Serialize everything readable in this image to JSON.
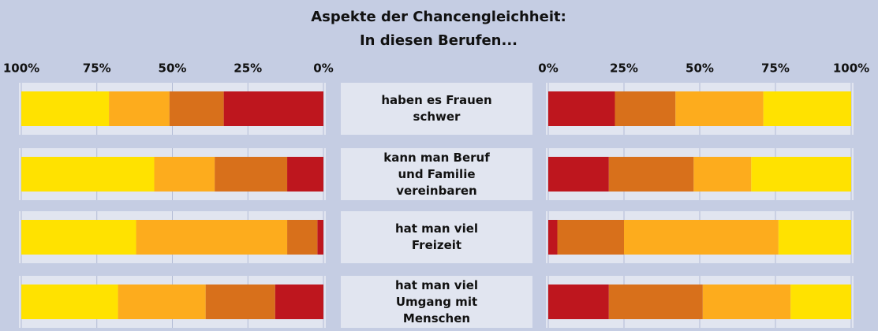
{
  "title": "Aspekte der Chancengleichheit:",
  "subtitle": "In diesen Berufen...",
  "categories": [
    "haben es Frauen schwer",
    "kann man Beruf und Familie vereinbaren",
    "hat man viel Freizeit",
    "hat man viel Umgang mit Menschen"
  ],
  "chart_data": [
    {
      "type": "bar",
      "orientation": "horizontal",
      "stacked": true,
      "xlim": [
        100,
        0
      ],
      "xticks": [
        {
          "value": 100,
          "label": "100%"
        },
        {
          "value": 75,
          "label": "75%"
        },
        {
          "value": 50,
          "label": "50%"
        },
        {
          "value": 25,
          "label": "25%"
        },
        {
          "value": 0,
          "label": "0%"
        }
      ],
      "grid": true,
      "series": [
        {
          "color": "#be161e",
          "values": [
            33,
            12,
            2,
            16
          ]
        },
        {
          "color": "#d8701b",
          "values": [
            18,
            24,
            10,
            23
          ]
        },
        {
          "color": "#fdac1d",
          "values": [
            20,
            20,
            50,
            29
          ]
        },
        {
          "color": "#ffe200",
          "values": [
            29,
            44,
            38,
            32
          ]
        }
      ]
    },
    {
      "type": "bar",
      "orientation": "horizontal",
      "stacked": true,
      "xlim": [
        0,
        100
      ],
      "xticks": [
        {
          "value": 0,
          "label": "0%"
        },
        {
          "value": 25,
          "label": "25%"
        },
        {
          "value": 50,
          "label": "50%"
        },
        {
          "value": 75,
          "label": "75%"
        },
        {
          "value": 100,
          "label": "100%"
        }
      ],
      "grid": true,
      "series": [
        {
          "color": "#be161e",
          "values": [
            22,
            20,
            3,
            20
          ]
        },
        {
          "color": "#d8701b",
          "values": [
            20,
            28,
            22,
            31
          ]
        },
        {
          "color": "#fdac1d",
          "values": [
            29,
            19,
            51,
            29
          ]
        },
        {
          "color": "#ffe200",
          "values": [
            29,
            33,
            24,
            20
          ]
        }
      ]
    }
  ]
}
